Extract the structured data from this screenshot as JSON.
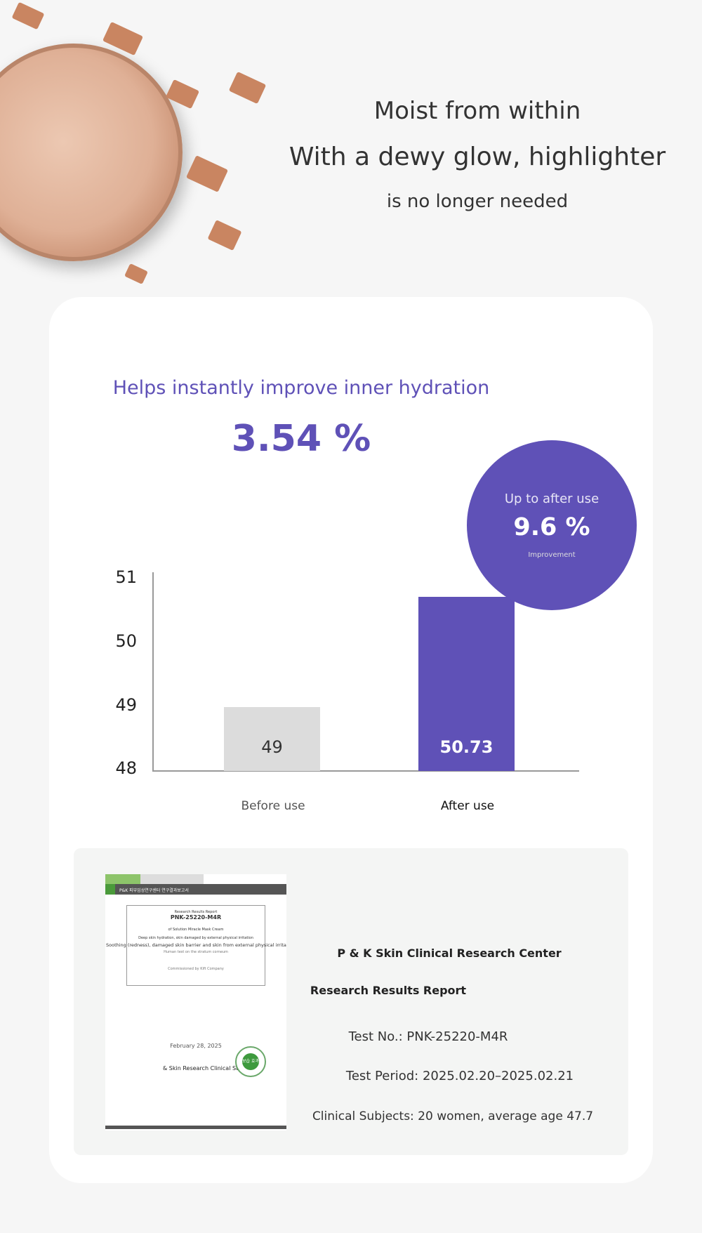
{
  "headline": {
    "line1": "Moist from within",
    "line2": "With a dewy glow, highlighter",
    "line3": "is no longer needed"
  },
  "card": {
    "subtitle": "Helps instantly improve inner hydration",
    "big_value": "3.54 %",
    "accent": "#5f51b7"
  },
  "badge": {
    "label": "Up to after use",
    "value": "9.6 %",
    "caption": "Improvement"
  },
  "chart_data": {
    "type": "bar",
    "categories": [
      "Before use",
      "After use"
    ],
    "values": [
      49,
      50.73
    ],
    "value_labels": [
      "49",
      "50.73"
    ],
    "ylim": [
      48,
      51
    ],
    "yticks": [
      "51",
      "50",
      "49",
      "48"
    ],
    "colors": [
      "#dcdcdc",
      "#5f51b7"
    ]
  },
  "report": {
    "doc": {
      "header": "P&K 피부임상연구센터 연구결과보고서",
      "title": "Research Results Report",
      "number": "PNK-25220-M4R",
      "product": "of Solution Miracle Mask Cream",
      "line1": "Deep skin hydration, skin damaged by external physical irritation",
      "line2": "Soothing (redness), damaged skin barrier and skin from external physical irritation",
      "line3": "Human test on the stratum corneum",
      "commissioned": "Commissioned by Kift Company",
      "date": "February 28, 2025",
      "org": "& Skin Research Clinical Study",
      "stamp": "보습 효과"
    },
    "center": "P & K Skin Clinical Research Center",
    "title": "Research Results Report",
    "test_no": "Test No.: PNK-25220-M4R",
    "period": "Test Period: 2025.02.20–2025.02.21",
    "subjects": "Clinical Subjects: 20 women, average age 47.7"
  }
}
